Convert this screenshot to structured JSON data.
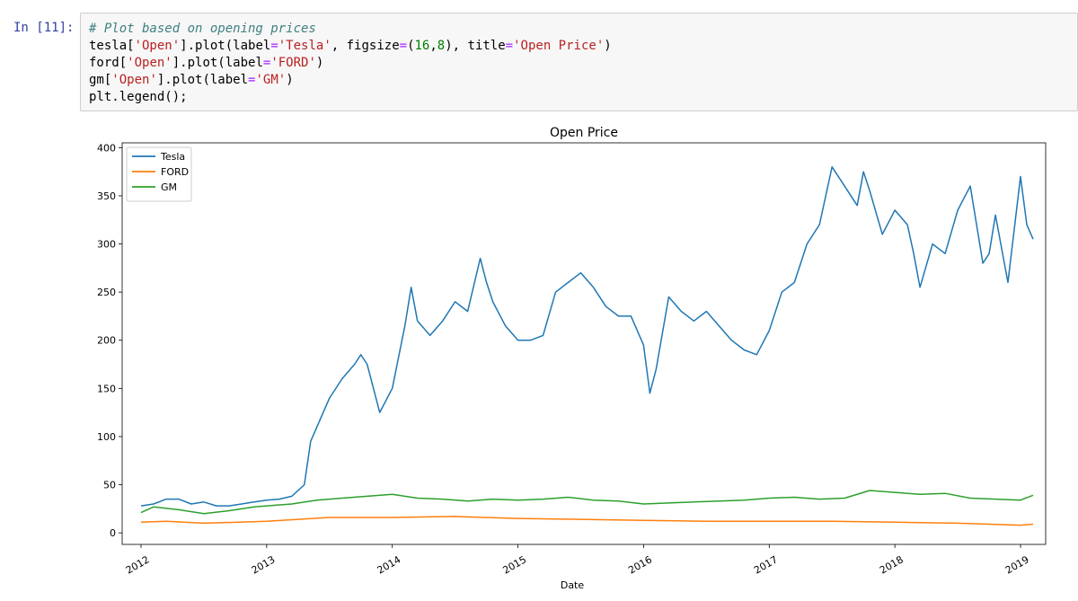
{
  "cell": {
    "prompt": "In [11]:",
    "code_lines": [
      [
        {
          "t": "# Plot based on opening prices",
          "c": "comment"
        }
      ],
      [
        {
          "t": "tesla[",
          "c": ""
        },
        {
          "t": "'Open'",
          "c": "str"
        },
        {
          "t": "].plot(label",
          "c": ""
        },
        {
          "t": "=",
          "c": "op"
        },
        {
          "t": "'Tesla'",
          "c": "str"
        },
        {
          "t": ", figsize",
          "c": ""
        },
        {
          "t": "=",
          "c": "op"
        },
        {
          "t": "(",
          "c": ""
        },
        {
          "t": "16",
          "c": "num"
        },
        {
          "t": ",",
          "c": ""
        },
        {
          "t": "8",
          "c": "num"
        },
        {
          "t": "), title",
          "c": ""
        },
        {
          "t": "=",
          "c": "op"
        },
        {
          "t": "'Open Price'",
          "c": "str"
        },
        {
          "t": ")",
          "c": ""
        }
      ],
      [
        {
          "t": "ford[",
          "c": ""
        },
        {
          "t": "'Open'",
          "c": "str"
        },
        {
          "t": "].plot(label",
          "c": ""
        },
        {
          "t": "=",
          "c": "op"
        },
        {
          "t": "'FORD'",
          "c": "str"
        },
        {
          "t": ")",
          "c": ""
        }
      ],
      [
        {
          "t": "gm[",
          "c": ""
        },
        {
          "t": "'Open'",
          "c": "str"
        },
        {
          "t": "].plot(label",
          "c": ""
        },
        {
          "t": "=",
          "c": "op"
        },
        {
          "t": "'GM'",
          "c": "str"
        },
        {
          "t": ")",
          "c": ""
        }
      ],
      [
        {
          "t": "plt.legend();",
          "c": ""
        }
      ]
    ]
  },
  "chart_data": {
    "type": "line",
    "title": "Open Price",
    "xlabel": "Date",
    "ylabel": "",
    "xlim": [
      2011.85,
      2019.2
    ],
    "ylim": [
      -12,
      405
    ],
    "x_ticks": [
      2012,
      2013,
      2014,
      2015,
      2016,
      2017,
      2018,
      2019
    ],
    "x_tick_labels": [
      "2012",
      "2013",
      "2014",
      "2015",
      "2016",
      "2017",
      "2018",
      "2019"
    ],
    "y_ticks": [
      0,
      50,
      100,
      150,
      200,
      250,
      300,
      350,
      400
    ],
    "y_tick_labels": [
      "0",
      "50",
      "100",
      "150",
      "200",
      "250",
      "300",
      "350",
      "400"
    ],
    "grid": false,
    "legend_position": "top-left",
    "series": [
      {
        "name": "Tesla",
        "color": "#1f77b4",
        "x": [
          2012.0,
          2012.1,
          2012.2,
          2012.3,
          2012.4,
          2012.5,
          2012.6,
          2012.7,
          2012.8,
          2012.9,
          2013.0,
          2013.1,
          2013.2,
          2013.3,
          2013.35,
          2013.4,
          2013.5,
          2013.6,
          2013.7,
          2013.75,
          2013.8,
          2013.85,
          2013.9,
          2014.0,
          2014.1,
          2014.15,
          2014.2,
          2014.3,
          2014.4,
          2014.5,
          2014.6,
          2014.7,
          2014.75,
          2014.8,
          2014.9,
          2015.0,
          2015.1,
          2015.2,
          2015.3,
          2015.4,
          2015.5,
          2015.6,
          2015.7,
          2015.8,
          2015.9,
          2016.0,
          2016.05,
          2016.1,
          2016.2,
          2016.3,
          2016.4,
          2016.5,
          2016.6,
          2016.7,
          2016.8,
          2016.9,
          2017.0,
          2017.1,
          2017.2,
          2017.3,
          2017.4,
          2017.5,
          2017.6,
          2017.7,
          2017.75,
          2017.8,
          2017.9,
          2018.0,
          2018.1,
          2018.15,
          2018.2,
          2018.3,
          2018.4,
          2018.5,
          2018.6,
          2018.7,
          2018.75,
          2018.8,
          2018.9,
          2019.0,
          2019.05,
          2019.1
        ],
        "values": [
          28,
          30,
          35,
          35,
          30,
          32,
          28,
          28,
          30,
          32,
          34,
          35,
          38,
          50,
          95,
          110,
          140,
          160,
          175,
          185,
          175,
          150,
          125,
          150,
          215,
          255,
          220,
          205,
          220,
          240,
          230,
          285,
          260,
          240,
          215,
          200,
          200,
          205,
          250,
          260,
          270,
          255,
          235,
          225,
          225,
          195,
          145,
          170,
          245,
          230,
          220,
          230,
          215,
          200,
          190,
          185,
          210,
          250,
          260,
          300,
          320,
          380,
          360,
          340,
          375,
          355,
          310,
          335,
          320,
          290,
          255,
          300,
          290,
          335,
          360,
          280,
          290,
          330,
          260,
          370,
          320,
          305
        ]
      },
      {
        "name": "FORD",
        "color": "#ff7f0e",
        "x": [
          2012.0,
          2012.2,
          2012.5,
          2013.0,
          2013.5,
          2014.0,
          2014.5,
          2015.0,
          2015.5,
          2016.0,
          2016.5,
          2017.0,
          2017.5,
          2018.0,
          2018.5,
          2019.0,
          2019.1
        ],
        "values": [
          11,
          12,
          10,
          12,
          16,
          16,
          17,
          15,
          14,
          13,
          12,
          12,
          12,
          11,
          10,
          8,
          9
        ]
      },
      {
        "name": "GM",
        "color": "#2ca02c",
        "x": [
          2012.0,
          2012.1,
          2012.3,
          2012.5,
          2012.7,
          2012.9,
          2013.0,
          2013.2,
          2013.4,
          2013.6,
          2013.8,
          2014.0,
          2014.2,
          2014.4,
          2014.6,
          2014.8,
          2015.0,
          2015.2,
          2015.4,
          2015.6,
          2015.8,
          2016.0,
          2016.2,
          2016.4,
          2016.6,
          2016.8,
          2017.0,
          2017.2,
          2017.4,
          2017.6,
          2017.8,
          2018.0,
          2018.2,
          2018.4,
          2018.6,
          2018.8,
          2019.0,
          2019.1
        ],
        "values": [
          21,
          27,
          24,
          20,
          23,
          27,
          28,
          30,
          34,
          36,
          38,
          40,
          36,
          35,
          33,
          35,
          34,
          35,
          37,
          34,
          33,
          30,
          31,
          32,
          33,
          34,
          36,
          37,
          35,
          36,
          44,
          42,
          40,
          41,
          36,
          35,
          34,
          39
        ]
      }
    ]
  }
}
